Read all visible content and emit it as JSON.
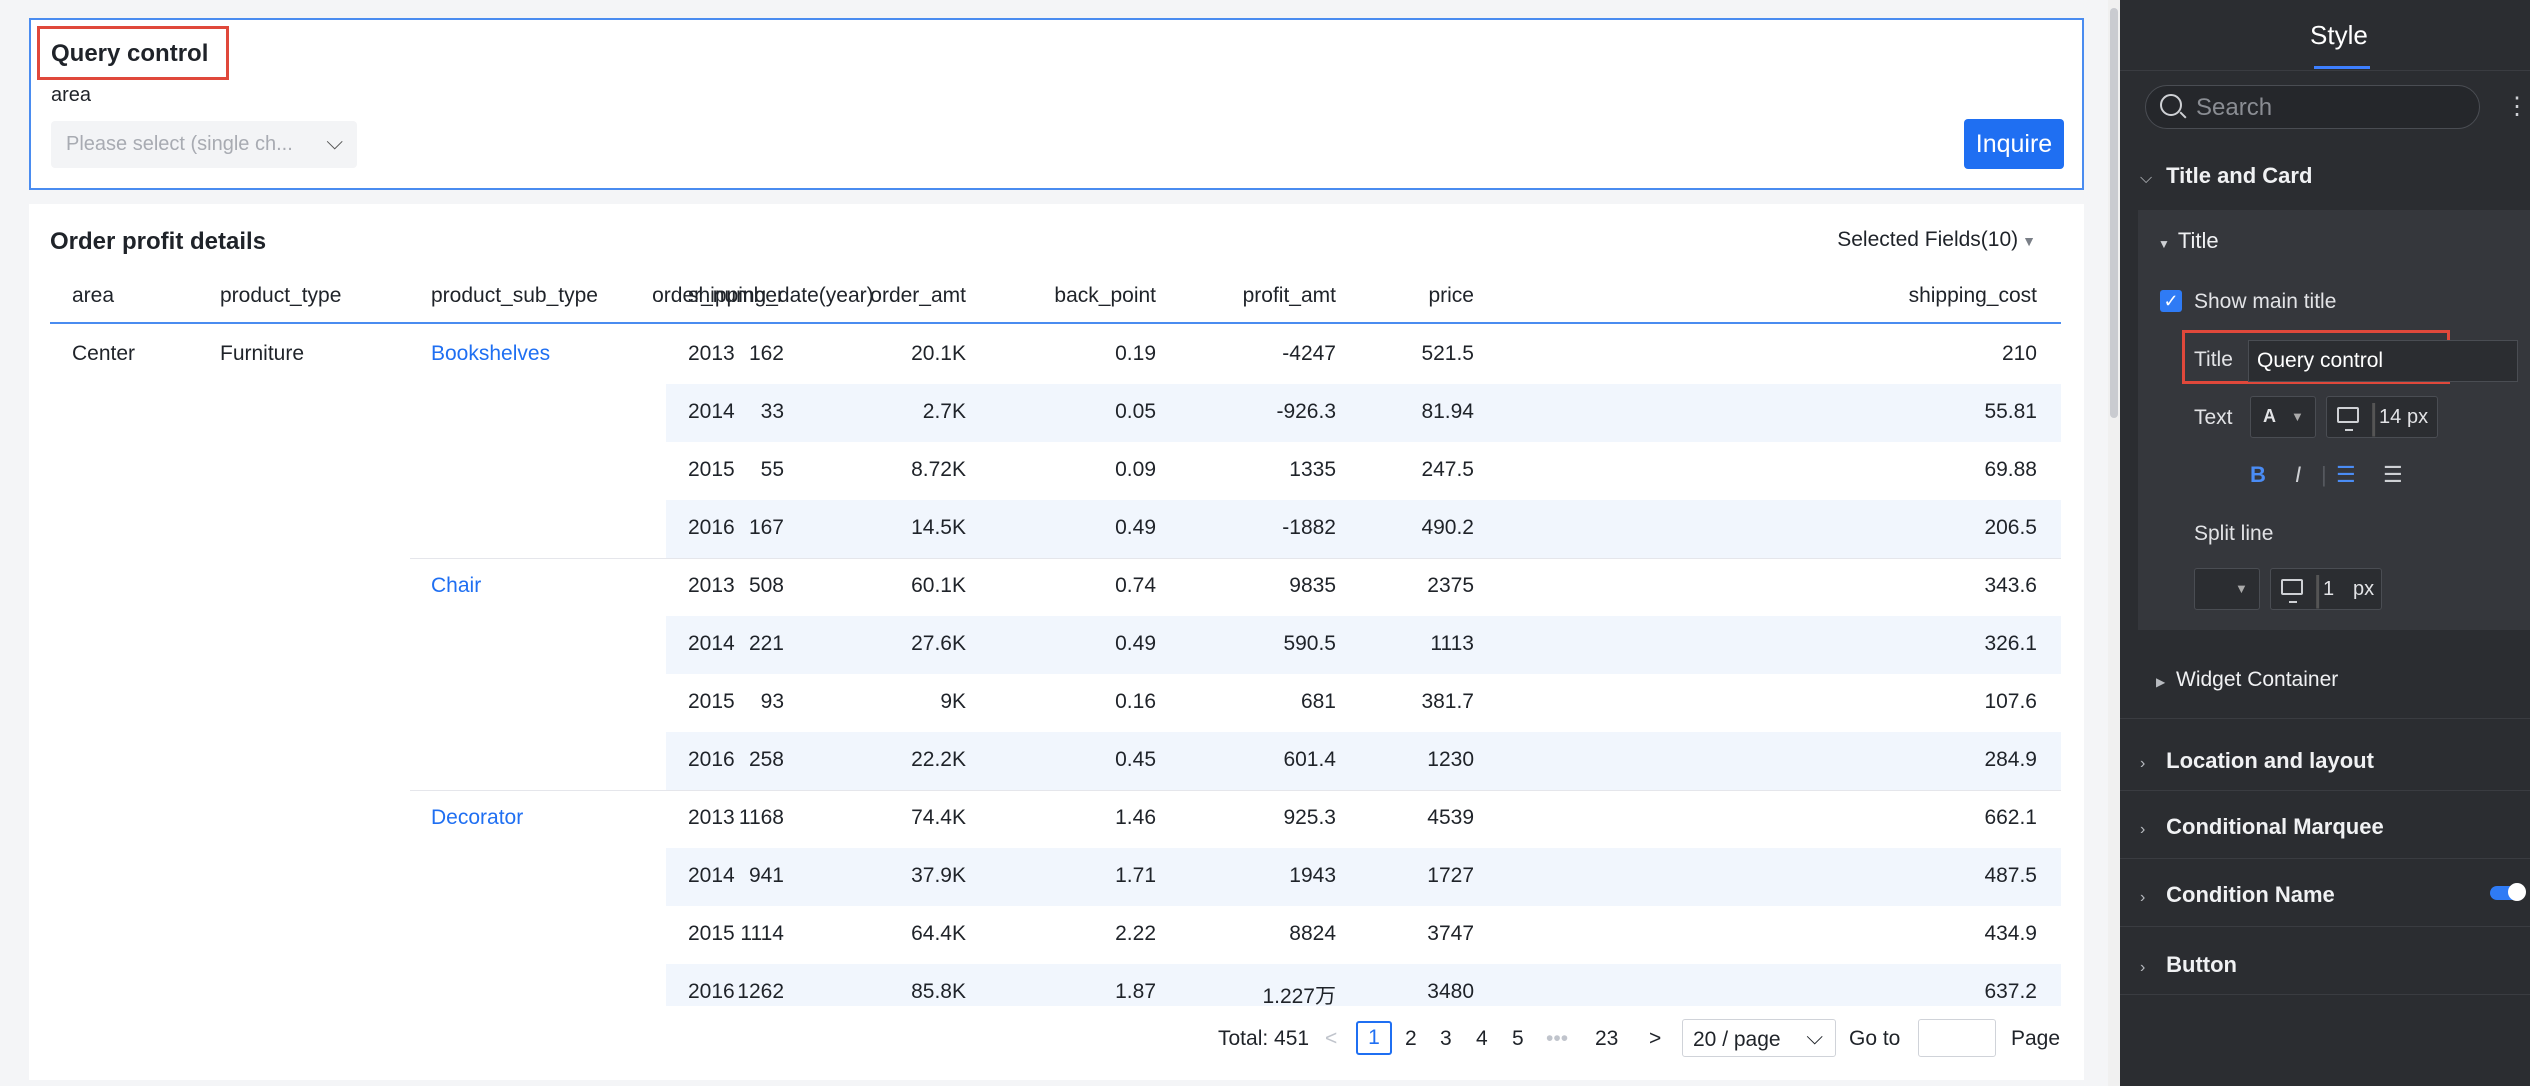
{
  "query_control": {
    "title": "Query control",
    "field_label": "area",
    "select_placeholder": "Please select (single ch...",
    "inquire_label": "Inquire"
  },
  "table": {
    "title": "Order profit details",
    "selected_fields": "Selected Fields(10)",
    "columns": [
      "area",
      "product_type",
      "product_sub_type",
      "shipping_date(year)",
      "order_number",
      "order_amt",
      "back_point",
      "profit_amt",
      "price",
      "shipping_cost"
    ],
    "area": "Center",
    "product_type": "Furniture",
    "groups": [
      {
        "sub_type": "Bookshelves",
        "rows": [
          [
            "2013",
            "162",
            "20.1K",
            "0.19",
            "-4247",
            "521.5",
            "210"
          ],
          [
            "2014",
            "33",
            "2.7K",
            "0.05",
            "-926.3",
            "81.94",
            "55.81"
          ],
          [
            "2015",
            "55",
            "8.72K",
            "0.09",
            "1335",
            "247.5",
            "69.88"
          ],
          [
            "2016",
            "167",
            "14.5K",
            "0.49",
            "-1882",
            "490.2",
            "206.5"
          ]
        ]
      },
      {
        "sub_type": "Chair",
        "rows": [
          [
            "2013",
            "508",
            "60.1K",
            "0.74",
            "9835",
            "2375",
            "343.6"
          ],
          [
            "2014",
            "221",
            "27.6K",
            "0.49",
            "590.5",
            "1113",
            "326.1"
          ],
          [
            "2015",
            "93",
            "9K",
            "0.16",
            "681",
            "381.7",
            "107.6"
          ],
          [
            "2016",
            "258",
            "22.2K",
            "0.45",
            "601.4",
            "1230",
            "284.9"
          ]
        ]
      },
      {
        "sub_type": "Decorator",
        "rows": [
          [
            "2013",
            "1168",
            "74.4K",
            "1.46",
            "925.3",
            "4539",
            "662.1"
          ],
          [
            "2014",
            "941",
            "37.9K",
            "1.71",
            "1943",
            "1727",
            "487.5"
          ],
          [
            "2015",
            "1114",
            "64.4K",
            "2.22",
            "8824",
            "3747",
            "434.9"
          ],
          [
            "2016",
            "1262",
            "85.8K",
            "1.87",
            "1.227万",
            "3480",
            "637.2"
          ]
        ]
      }
    ]
  },
  "pagination": {
    "total": "Total: 451",
    "pages": [
      "1",
      "2",
      "3",
      "4",
      "5"
    ],
    "ellipsis": "•••",
    "last_page": "23",
    "per_page": "20 / page",
    "goto": "Go to",
    "page_suffix": "Page",
    "current": 1
  },
  "panel": {
    "tab": "Style",
    "search_placeholder": "Search",
    "sections": {
      "title_and_card": "Title and Card",
      "title": "Title",
      "show_main_title": "Show main title",
      "title_label": "Title",
      "title_value": "Query control",
      "text_label": "Text",
      "font_glyph": "A",
      "font_size": "14",
      "px": "px",
      "bold": "B",
      "italic": "I",
      "split_line": "Split line",
      "split_size": "1",
      "widget_container": "Widget Container",
      "location_and_layout": "Location and layout",
      "conditional_marquee": "Conditional Marquee",
      "condition_name": "Condition Name",
      "button": "Button"
    },
    "show_main_title_checked": true,
    "condition_name_toggle_on": true,
    "accent_color": "#2f7bf5"
  }
}
